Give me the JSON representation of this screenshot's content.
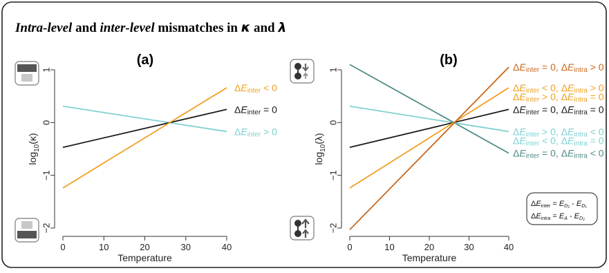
{
  "figure": {
    "title_parts": [
      {
        "text": "Intra-level",
        "style": "italic"
      },
      {
        "text": " and ",
        "style": "bold"
      },
      {
        "text": "inter-level",
        "style": "italic"
      },
      {
        "text": " mismatches in ",
        "style": "bold"
      },
      {
        "text": "κ",
        "style": "bolditalic"
      },
      {
        "text": " and ",
        "style": "bold"
      },
      {
        "text": "λ",
        "style": "bolditalic"
      }
    ],
    "colors": {
      "black": "#1a1a1a",
      "orange": "#f0a020",
      "dark_orange": "#c8681c",
      "cyan": "#7fd0d0",
      "teal": "#4f8c8a",
      "axis": "#333333",
      "frame": "#222222"
    },
    "legend_box": {
      "line1": {
        "lhs": "ΔE",
        "lhs_sub": "inter",
        "eq": " = ",
        "t1": "E",
        "t1_sub": "D",
        "t1_subsub": "2",
        "minus": " - ",
        "t2": "E",
        "t2_sub": "D",
        "t2_subsub": "1"
      },
      "line2": {
        "lhs": "ΔE",
        "lhs_sub": "intra",
        "eq": " = ",
        "t1": "E",
        "t1_sub": "A",
        "minus": " - ",
        "t2": "E",
        "t2_sub": "D",
        "t2_subsub": "2"
      }
    },
    "icons": [
      "panel-a-top-icon",
      "panel-a-bottom-icon",
      "panel-b-top-icon",
      "panel-b-bottom-icon"
    ]
  },
  "chart_data": [
    {
      "type": "line",
      "panel_label": "(a)",
      "xlabel": "Temperature",
      "ylabel": "log10(κ)",
      "ylabel_parts": {
        "base": "log",
        "sub": "10",
        "arg": "(κ)"
      },
      "xlim": [
        0,
        40
      ],
      "ylim": [
        -2,
        1
      ],
      "xticks": [
        "0",
        "10",
        "20",
        "30",
        "40"
      ],
      "yticks": [
        "−2",
        "−1",
        "0",
        "1"
      ],
      "grid": false,
      "series": [
        {
          "label_parts": [
            {
              "t": "ΔE"
            },
            {
              "t": "inter",
              "sub": true
            },
            {
              "t": " < 0"
            }
          ],
          "color": "orange",
          "x": [
            0,
            40
          ],
          "y": [
            -1.24,
            0.66
          ]
        },
        {
          "label_parts": [
            {
              "t": "ΔE"
            },
            {
              "t": "inter",
              "sub": true
            },
            {
              "t": " = 0"
            }
          ],
          "color": "black",
          "x": [
            0,
            40
          ],
          "y": [
            -0.47,
            0.25
          ]
        },
        {
          "label_parts": [
            {
              "t": "ΔE"
            },
            {
              "t": "inter",
              "sub": true
            },
            {
              "t": " > 0"
            }
          ],
          "color": "cyan",
          "x": [
            0,
            40
          ],
          "y": [
            0.31,
            -0.17
          ]
        }
      ]
    },
    {
      "type": "line",
      "panel_label": "(b)",
      "xlabel": "Temperature",
      "ylabel": "log10(λ)",
      "ylabel_parts": {
        "base": "log",
        "sub": "10",
        "arg": "(λ)"
      },
      "xlim": [
        0,
        40
      ],
      "ylim": [
        -2,
        1
      ],
      "xticks": [
        "0",
        "10",
        "20",
        "30",
        "40"
      ],
      "yticks": [
        "−2",
        "−1",
        "0",
        "1"
      ],
      "grid": false,
      "series": [
        {
          "label_parts": [
            {
              "t": "ΔE"
            },
            {
              "t": "inter",
              "sub": true
            },
            {
              "t": " = 0, "
            },
            {
              "t": "ΔE"
            },
            {
              "t": "intra",
              "sub": true
            },
            {
              "t": " > 0"
            }
          ],
          "color": "dark_orange",
          "x": [
            0,
            40
          ],
          "y": [
            -2.03,
            1.05
          ]
        },
        {
          "label_parts": [
            {
              "t": "ΔE"
            },
            {
              "t": "inter",
              "sub": true
            },
            {
              "t": " < 0, "
            },
            {
              "t": "ΔE"
            },
            {
              "t": "intra",
              "sub": true
            },
            {
              "t": " > 0"
            }
          ],
          "color": "orange",
          "x": [
            0,
            40
          ],
          "y": [
            -1.24,
            0.66
          ]
        },
        {
          "label_parts": [
            {
              "t": "ΔE"
            },
            {
              "t": "inter",
              "sub": true
            },
            {
              "t": " > 0, "
            },
            {
              "t": "ΔE"
            },
            {
              "t": "intra",
              "sub": true
            },
            {
              "t": " = 0"
            }
          ],
          "color": "orange",
          "x": [
            0,
            40
          ],
          "y": [
            -1.24,
            0.66
          ]
        },
        {
          "label_parts": [
            {
              "t": "ΔE"
            },
            {
              "t": "inter",
              "sub": true
            },
            {
              "t": " = 0, "
            },
            {
              "t": "ΔE"
            },
            {
              "t": "intra",
              "sub": true
            },
            {
              "t": " = 0"
            }
          ],
          "color": "black",
          "x": [
            0,
            40
          ],
          "y": [
            -0.47,
            0.25
          ]
        },
        {
          "label_parts": [
            {
              "t": "ΔE"
            },
            {
              "t": "inter",
              "sub": true
            },
            {
              "t": " > 0, "
            },
            {
              "t": "ΔE"
            },
            {
              "t": "intra",
              "sub": true
            },
            {
              "t": " < 0"
            }
          ],
          "color": "cyan",
          "x": [
            0,
            40
          ],
          "y": [
            0.31,
            -0.17
          ]
        },
        {
          "label_parts": [
            {
              "t": "ΔE"
            },
            {
              "t": "inter",
              "sub": true
            },
            {
              "t": " < 0, "
            },
            {
              "t": "ΔE"
            },
            {
              "t": "intra",
              "sub": true
            },
            {
              "t": " = 0"
            }
          ],
          "color": "cyan",
          "x": [
            0,
            40
          ],
          "y": [
            0.31,
            -0.17
          ]
        },
        {
          "label_parts": [
            {
              "t": "ΔE"
            },
            {
              "t": "inter",
              "sub": true
            },
            {
              "t": " = 0, "
            },
            {
              "t": "ΔE"
            },
            {
              "t": "intra",
              "sub": true
            },
            {
              "t": " < 0"
            }
          ],
          "color": "teal",
          "x": [
            0,
            40
          ],
          "y": [
            1.1,
            -0.58
          ]
        }
      ]
    }
  ]
}
